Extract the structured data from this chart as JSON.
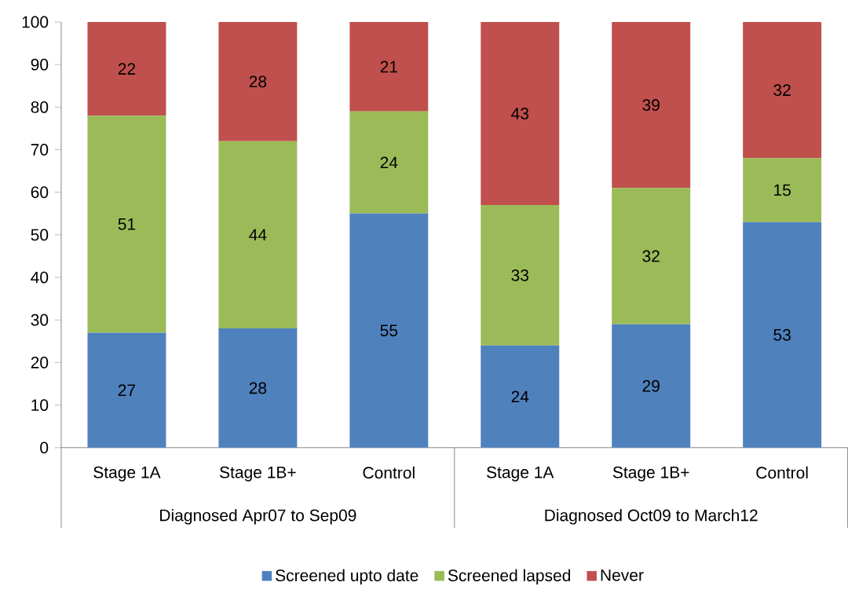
{
  "chart_data": {
    "type": "bar",
    "stacked": true,
    "categories": [
      "Stage 1A",
      "Stage 1B+",
      "Control",
      "Stage 1A",
      "Stage 1B+",
      "Control"
    ],
    "series": [
      {
        "name": "Screened upto date",
        "color": "#4f81bd",
        "values": [
          27,
          28,
          55,
          24,
          29,
          53
        ]
      },
      {
        "name": "Screened lapsed",
        "color": "#9bbb59",
        "values": [
          51,
          44,
          24,
          33,
          32,
          15
        ]
      },
      {
        "name": "Never",
        "color": "#c0504d",
        "values": [
          22,
          28,
          21,
          43,
          39,
          32
        ]
      }
    ],
    "ylim": [
      0,
      100
    ],
    "yticks": [
      0,
      10,
      20,
      30,
      40,
      50,
      60,
      70,
      80,
      90,
      100
    ],
    "data_labels": true,
    "grid": false,
    "legend": "bottom",
    "annotations": [
      "Diagnosed Apr07 to Sep09",
      "Diagnosed Oct09 to March12"
    ]
  }
}
